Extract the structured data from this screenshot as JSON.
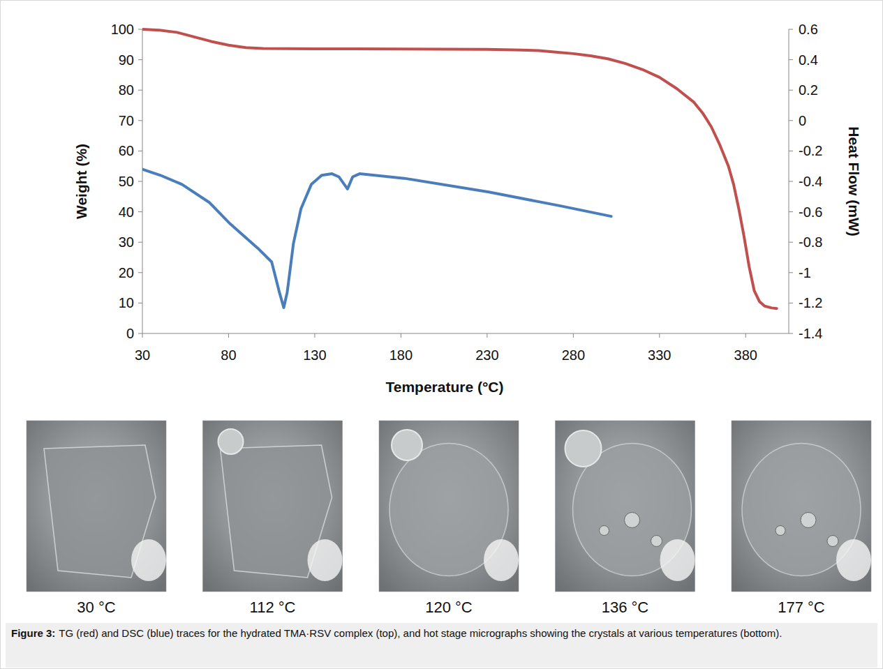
{
  "chart_data": {
    "type": "line",
    "x_label": "Temperature (°C)",
    "y_label": "Weight (%)",
    "y2_label": "Heat Flow (mW)",
    "xlim": [
      30,
      405
    ],
    "xticks": [
      30,
      80,
      130,
      180,
      230,
      280,
      330,
      380
    ],
    "ylim": [
      0,
      100
    ],
    "yticks": [
      0,
      10,
      20,
      30,
      40,
      50,
      60,
      70,
      80,
      90,
      100
    ],
    "y2lim": [
      -1.4,
      0.6
    ],
    "y2ticks": [
      -1.4,
      -1.2,
      -1,
      -0.8,
      -0.6,
      -0.4,
      -0.2,
      0,
      0.2,
      0.4,
      0.6
    ],
    "grid": false,
    "series": [
      {
        "color": "#c0504d",
        "axis": "y",
        "x": [
          30,
          40,
          50,
          60,
          70,
          80,
          90,
          100,
          130,
          180,
          230,
          250,
          260,
          270,
          280,
          290,
          300,
          310,
          320,
          330,
          340,
          350,
          355,
          360,
          365,
          370,
          373,
          376,
          379,
          382,
          385,
          388,
          391,
          395,
          398
        ],
        "values": [
          100,
          99.7,
          99,
          97.5,
          96,
          94.8,
          94,
          93.7,
          93.6,
          93.5,
          93.4,
          93.2,
          93,
          92.5,
          92,
          91.3,
          90.3,
          88.8,
          86.8,
          84.2,
          80.5,
          76,
          72.5,
          68,
          62,
          55,
          49,
          41,
          32,
          22,
          14,
          10.5,
          9,
          8.4,
          8.2
        ]
      },
      {
        "color": "#4a7ebb",
        "axis": "y2",
        "x": [
          30,
          40.5,
          53,
          69,
          81,
          97,
          105,
          109.5,
          112,
          114,
          117.6,
          122,
          128,
          134,
          140,
          144,
          149,
          152,
          156,
          182,
          231,
          272,
          302
        ],
        "values": [
          -0.32,
          -0.36,
          -0.42,
          -0.54,
          -0.68,
          -0.84,
          -0.93,
          -1.13,
          -1.23,
          -1.13,
          -0.81,
          -0.58,
          -0.42,
          -0.36,
          -0.35,
          -0.37,
          -0.45,
          -0.37,
          -0.35,
          -0.38,
          -0.47,
          -0.56,
          -0.63
        ]
      }
    ]
  },
  "micrographs": [
    {
      "label": "30 °C"
    },
    {
      "label": "112 °C"
    },
    {
      "label": "120 °C"
    },
    {
      "label": "136 °C"
    },
    {
      "label": "177 °C"
    }
  ],
  "caption": {
    "label": "Figure 3:",
    "text": "TG (red) and DSC (blue) traces for the hydrated TMA·RSV complex (top), and hot stage micrographs showing the crystals at various temperatures (bottom)."
  }
}
